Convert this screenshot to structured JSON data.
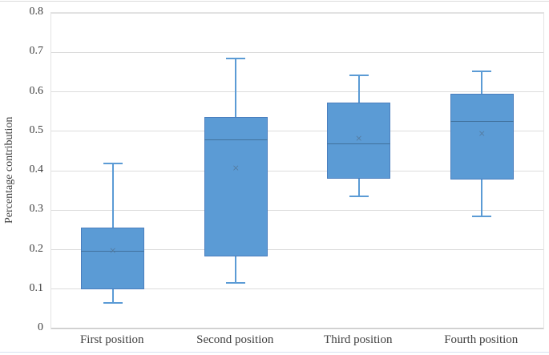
{
  "figure": {
    "background": "#ffffff",
    "top_border_color": "#dbdbdb",
    "bottom_border_color": "#d9e2f0"
  },
  "chart_data": {
    "type": "boxplot",
    "title": "",
    "xlabel": "",
    "ylabel": "Percentage contribution",
    "ylim": [
      0,
      0.8
    ],
    "yticks": [
      "0",
      "0.1",
      "0.2",
      "0.3",
      "0.4",
      "0.5",
      "0.6",
      "0.7",
      "0.8"
    ],
    "ytick_values": [
      0,
      0.1,
      0.2,
      0.3,
      0.4,
      0.5,
      0.6,
      0.7,
      0.8
    ],
    "grid": true,
    "legend": "none",
    "categories": [
      "First position",
      "Second position",
      "Third position",
      "Fourth position"
    ],
    "series": [
      {
        "name": "First position",
        "whisker_low": 0.065,
        "q1": 0.1,
        "median": 0.196,
        "mean": 0.195,
        "q3": 0.255,
        "whisker_high": 0.418
      },
      {
        "name": "Second position",
        "whisker_low": 0.115,
        "q1": 0.183,
        "median": 0.478,
        "mean": 0.405,
        "q3": 0.537,
        "whisker_high": 0.685
      },
      {
        "name": "Third position",
        "whisker_low": 0.335,
        "q1": 0.379,
        "median": 0.468,
        "mean": 0.48,
        "q3": 0.572,
        "whisker_high": 0.642
      },
      {
        "name": "Fourth position",
        "whisker_low": 0.285,
        "q1": 0.378,
        "median": 0.525,
        "mean": 0.492,
        "q3": 0.595,
        "whisker_high": 0.652
      }
    ],
    "marker": {
      "mean_glyph": "×"
    },
    "colors": {
      "box_fill": "#5b9bd5",
      "box_border": "#4a7ebe",
      "whisker": "#5b9bd5",
      "median_line": "#41719c",
      "mean_marker": "#54789b",
      "gridline": "#dcdcdc",
      "axis_line": "#c2c2c2",
      "plot_border": "#e4e4e4",
      "text": "#404040"
    }
  }
}
